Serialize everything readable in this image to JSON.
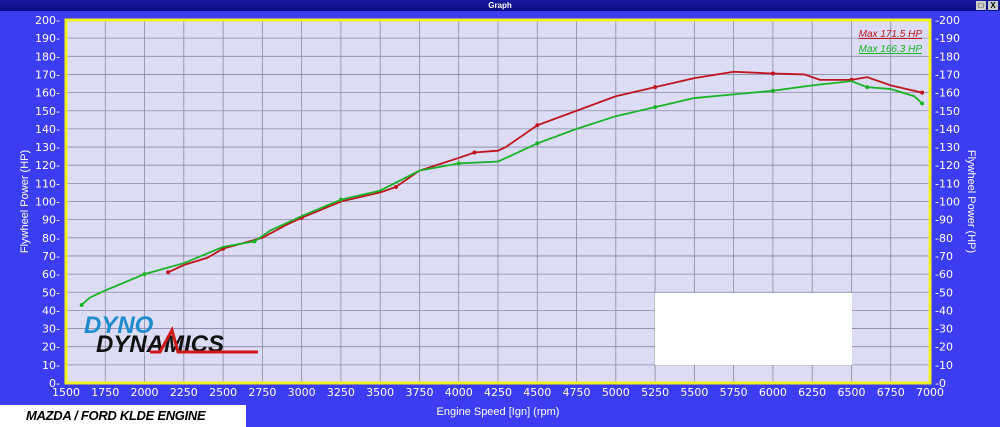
{
  "window": {
    "title": "Graph",
    "restore_icon": "restore-icon",
    "close_icon": "close-icon"
  },
  "badge": "MAZDA / FORD KLDE ENGINE",
  "logo": {
    "line1": "DYNO",
    "line2": "DYNAMICS"
  },
  "colors": {
    "background": "#3c3cf0",
    "plot": "#dcdcf4",
    "frame": "#f0f020",
    "red": "#c0141e",
    "green": "#18b428"
  },
  "chart_data": {
    "type": "line",
    "xlabel": "Engine Speed [Ign] (rpm)",
    "ylabel": "Flywheel Power (HP)",
    "ylabel_right": "Flywheel Power (HP)",
    "xlim": [
      1500,
      7000
    ],
    "ylim": [
      0,
      200
    ],
    "xticks": [
      1500,
      1750,
      2000,
      2250,
      2500,
      2750,
      3000,
      3250,
      3500,
      3750,
      4000,
      4250,
      4500,
      4750,
      5000,
      5250,
      5500,
      5750,
      6000,
      6250,
      6500,
      6750,
      7000
    ],
    "yticks": [
      0,
      10,
      20,
      30,
      40,
      50,
      60,
      70,
      80,
      90,
      100,
      110,
      120,
      130,
      140,
      150,
      160,
      170,
      180,
      190,
      200
    ],
    "grid": true,
    "legend_placement": "top-right",
    "series": [
      {
        "name": "Max 171.5 HP",
        "color": "#c0141e",
        "x": [
          2150,
          2250,
          2400,
          2500,
          2750,
          2900,
          3000,
          3250,
          3500,
          3600,
          3750,
          4000,
          4100,
          4250,
          4300,
          4500,
          4750,
          5000,
          5250,
          5500,
          5750,
          6000,
          6200,
          6300,
          6500,
          6600,
          6750,
          6950
        ],
        "y": [
          61,
          65,
          69,
          74,
          80,
          87,
          91,
          100,
          105,
          108,
          117,
          124,
          127,
          128,
          130,
          142,
          150,
          158,
          163,
          168,
          171.5,
          170.5,
          170,
          167,
          167,
          168.5,
          164,
          160
        ]
      },
      {
        "name": "Max 166.3 HP",
        "color": "#18b428",
        "x": [
          1600,
          1650,
          1750,
          2000,
          2250,
          2500,
          2700,
          2800,
          3000,
          3250,
          3500,
          3750,
          4000,
          4250,
          4300,
          4500,
          4750,
          5000,
          5250,
          5500,
          5750,
          6000,
          6250,
          6500,
          6600,
          6750,
          6900,
          6950
        ],
        "y": [
          43,
          47,
          51,
          60,
          66,
          75,
          78,
          84,
          92,
          101,
          106,
          117,
          121,
          122,
          124,
          132,
          140,
          147,
          152,
          157,
          159,
          161,
          164,
          166.3,
          163,
          162,
          158,
          154
        ]
      }
    ]
  }
}
